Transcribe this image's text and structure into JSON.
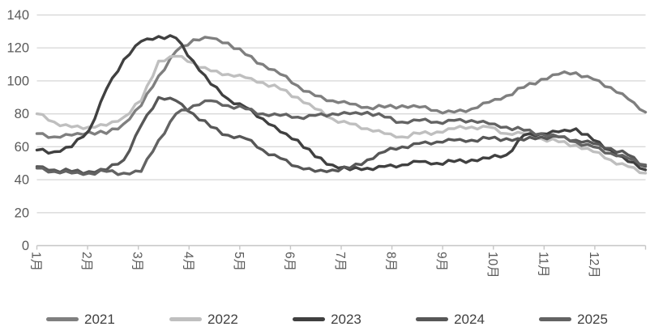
{
  "chart_data": {
    "type": "line",
    "title": "",
    "xlabel": "",
    "ylabel": "",
    "x_labels": [
      "1月",
      "2月",
      "3月",
      "4月",
      "5月",
      "6月",
      "7月",
      "8月",
      "9月",
      "10月",
      "11月",
      "12月"
    ],
    "samples_per_month": 3,
    "y_axis": {
      "min": 0,
      "max": 140,
      "step": 20,
      "tick_labels": [
        "0",
        "20",
        "40",
        "60",
        "80",
        "100",
        "120",
        "140"
      ]
    },
    "grid": true,
    "legend_position": "bottom",
    "series": [
      {
        "name": "2021",
        "color": "#7f7f7f",
        "values": [
          68,
          66,
          67,
          69,
          68,
          74,
          85,
          103,
          118,
          125,
          126,
          123,
          116,
          110,
          104,
          97,
          91,
          88,
          86,
          84,
          84,
          85,
          84,
          82,
          81,
          83,
          87,
          91,
          96,
          101,
          104,
          105,
          101,
          96,
          89,
          81
        ]
      },
      {
        "name": "2022",
        "color": "#bfbfbf",
        "values": [
          80,
          75,
          72,
          72,
          73,
          78,
          88,
          112,
          115,
          111,
          106,
          104,
          102,
          99,
          95,
          90,
          83,
          77,
          74,
          71,
          68,
          66,
          68,
          69,
          71,
          72,
          72,
          68,
          68,
          65,
          63,
          61,
          57,
          52,
          48,
          44
        ]
      },
      {
        "name": "2023",
        "color": "#404040",
        "values": [
          58,
          57,
          60,
          70,
          95,
          113,
          124,
          127,
          126,
          112,
          98,
          89,
          84,
          77,
          69,
          64,
          54,
          49,
          46,
          47,
          48,
          49,
          51,
          50,
          51,
          52,
          53,
          55,
          67,
          68,
          69,
          71,
          64,
          58,
          51,
          46
        ]
      },
      {
        "name": "2024",
        "color": "#575757",
        "values": [
          48,
          46,
          45,
          45,
          46,
          52,
          73,
          90,
          88,
          80,
          72,
          67,
          65,
          58,
          53,
          48,
          45,
          46,
          47,
          52,
          57,
          60,
          62,
          63,
          64,
          64,
          65,
          65,
          64,
          66,
          66,
          64,
          62,
          59,
          55,
          48
        ]
      },
      {
        "name": "2025",
        "color": "#636363",
        "values": [
          47,
          45,
          44,
          44,
          45,
          44,
          45,
          64,
          80,
          85,
          88,
          85,
          83,
          80,
          79,
          78,
          79,
          80,
          80,
          81,
          78,
          75,
          76,
          75,
          76,
          76,
          74,
          72,
          70,
          68,
          66,
          63,
          60,
          56,
          53,
          49
        ]
      }
    ]
  },
  "style": {
    "background": "#ffffff",
    "gridline_color": "#d9d9d9",
    "axis_color": "#c6c6c6",
    "tick_label_color": "#595959",
    "legend_text_color": "#404040"
  }
}
